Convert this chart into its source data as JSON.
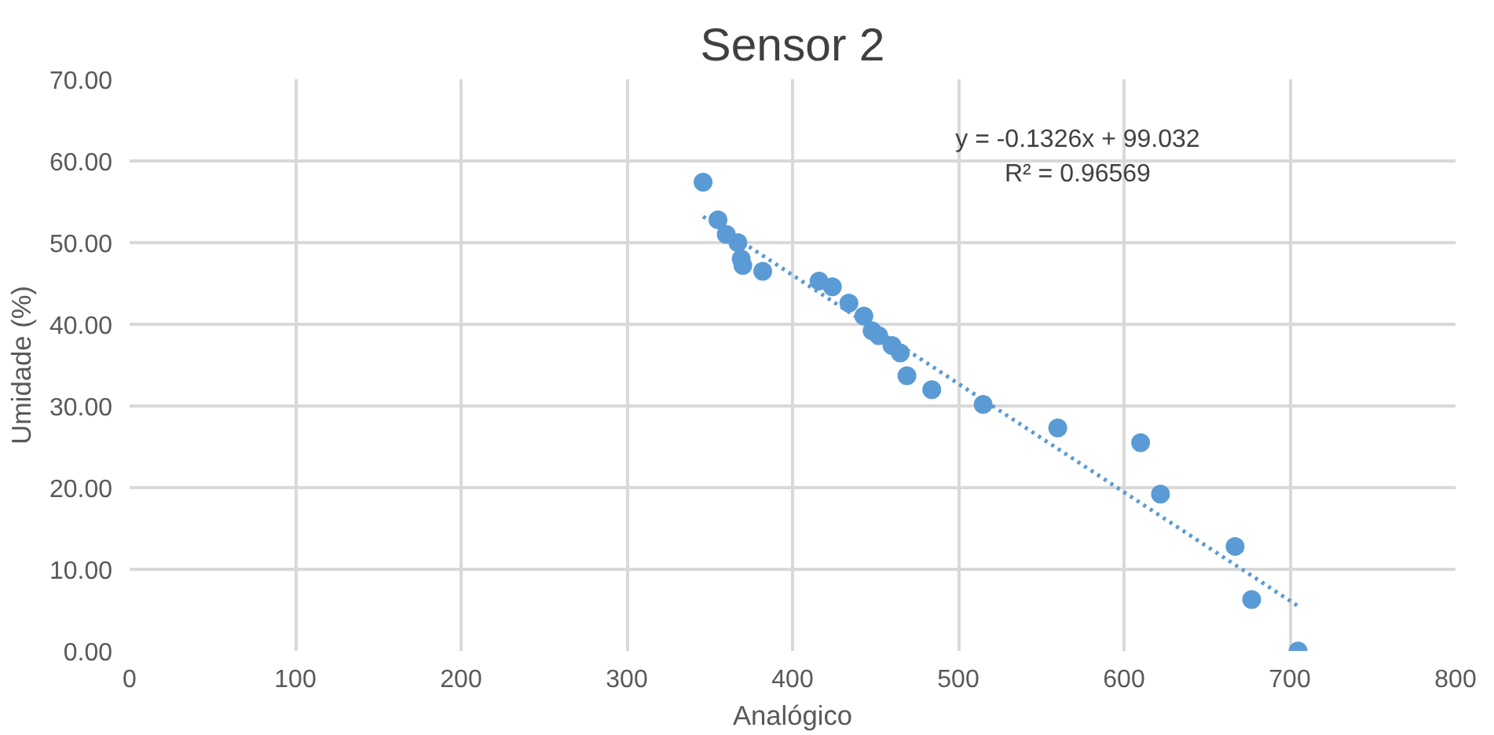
{
  "chart_data": {
    "type": "scatter",
    "title": "Sensor 2",
    "xlabel": "Analógico",
    "ylabel": "Umidade (%)",
    "xlim": [
      0,
      800
    ],
    "xticks": [
      0,
      100,
      200,
      300,
      400,
      500,
      600,
      700,
      800
    ],
    "ylim": [
      0,
      70
    ],
    "yticks": [
      {
        "value": 0,
        "label": "0.00"
      },
      {
        "value": 10,
        "label": "10.00"
      },
      {
        "value": 20,
        "label": "20.00"
      },
      {
        "value": 30,
        "label": "30.00"
      },
      {
        "value": 40,
        "label": "40.00"
      },
      {
        "value": 50,
        "label": "50.00"
      },
      {
        "value": 60,
        "label": "60.00"
      },
      {
        "value": 70,
        "label": "70.00"
      }
    ],
    "grid": true,
    "marker": "circle",
    "annotations": [
      "y = -0.1326x + 99.032",
      "R² = 0.96569"
    ],
    "series": [
      {
        "color": "#5b9bd5",
        "x": [
          346,
          355,
          360,
          367,
          369,
          370,
          382,
          416,
          424,
          434,
          443,
          448,
          452,
          460,
          465,
          469,
          484,
          515,
          560,
          610,
          622,
          667,
          677,
          705
        ],
        "values": [
          57.4,
          52.8,
          51.0,
          50.0,
          48.0,
          47.2,
          46.5,
          45.3,
          44.6,
          42.6,
          41.0,
          39.2,
          38.6,
          37.4,
          36.5,
          33.7,
          32.0,
          30.2,
          27.3,
          25.5,
          19.2,
          12.8,
          6.3,
          0.0
        ]
      },
      {
        "type": "line",
        "line_style": "dotted",
        "marker": "none",
        "color": "#5b9bd5",
        "x": [
          346,
          705
        ],
        "values": [
          53.2,
          5.5
        ]
      }
    ]
  }
}
